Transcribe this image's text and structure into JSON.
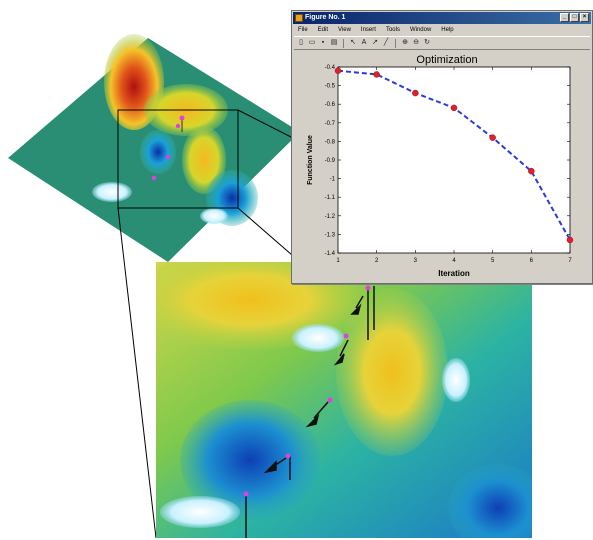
{
  "figure_window": {
    "title": "Figure No. 1",
    "menu": [
      "File",
      "Edit",
      "View",
      "Insert",
      "Tools",
      "Window",
      "Help"
    ],
    "toolbar_icons": [
      "new-icon",
      "open-icon",
      "save-icon",
      "print-icon",
      "select-arrow-icon",
      "edit-text-icon",
      "arrow-icon",
      "line-icon",
      "zoom-in-icon",
      "zoom-out-icon",
      "rotate-icon"
    ],
    "window_buttons": [
      "minimize",
      "maximize",
      "close"
    ]
  },
  "colors": {
    "line": "#2b3bd8",
    "marker": "#e0202a",
    "surface_peak": "#c0201a",
    "surface_mid": "#f2d12a",
    "surface_low": "#1d8fc8",
    "plane": "#2a8e74"
  },
  "chart_data": {
    "type": "line",
    "title": "Optimization",
    "xlabel": "Iteration",
    "ylabel": "Function Value",
    "x": [
      1,
      2,
      3,
      4,
      5,
      6,
      7
    ],
    "y": [
      -0.42,
      -0.44,
      -0.54,
      -0.62,
      -0.78,
      -0.96,
      -1.33
    ],
    "xlim": [
      1,
      7
    ],
    "ylim": [
      -1.4,
      -0.4
    ],
    "xticks": [
      "1",
      "2",
      "3",
      "4",
      "5",
      "6",
      "7"
    ],
    "yticks": [
      "-0.4",
      "-0.5",
      "-0.6",
      "-0.7",
      "-0.8",
      "-0.9",
      "-1",
      "-1.1",
      "-1.2",
      "-1.3",
      "-1.4"
    ],
    "line_style": "dashed",
    "grid": false
  }
}
